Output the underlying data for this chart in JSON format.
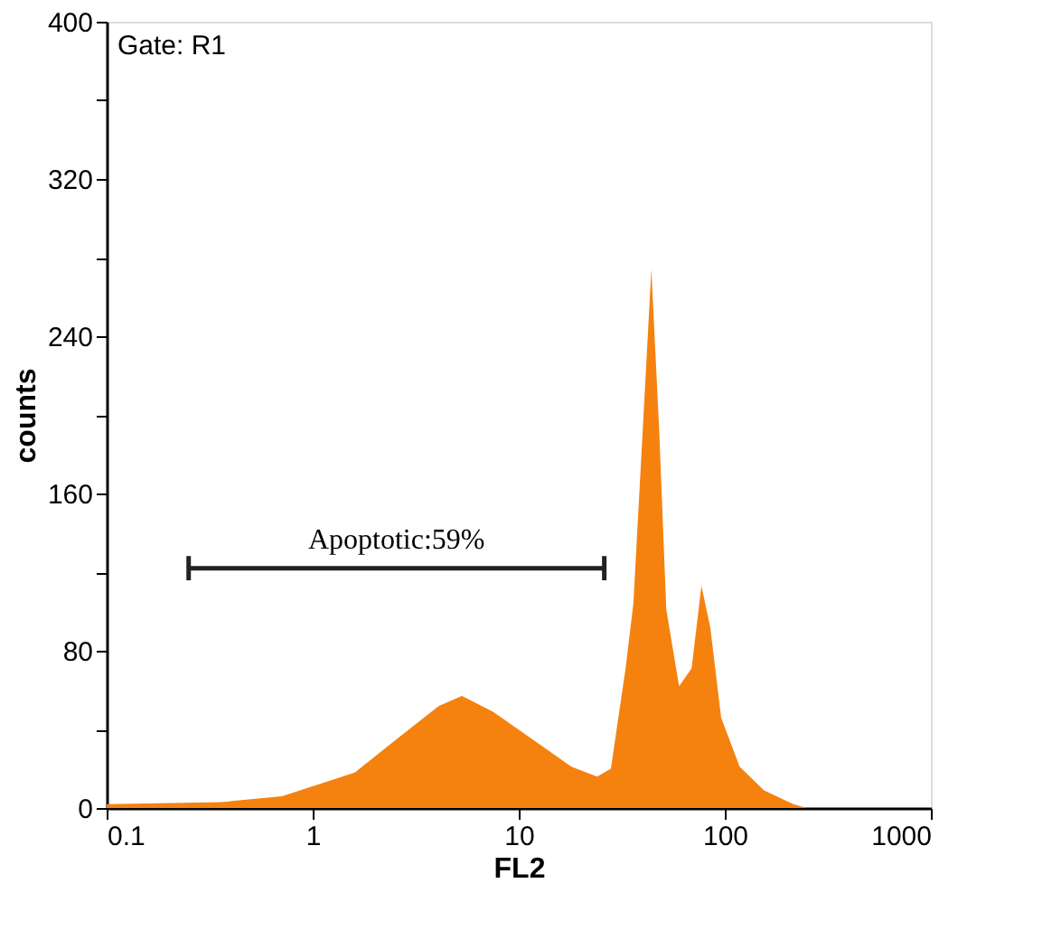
{
  "chart_data": {
    "type": "area",
    "xlabel": "FL2",
    "ylabel": "counts",
    "x": [
      0.1,
      0.36,
      0.71,
      1.6,
      2.7,
      4.1,
      5.3,
      7.5,
      12,
      18,
      24,
      28,
      33,
      36,
      40,
      44,
      48,
      52,
      60,
      69,
      77,
      85,
      96,
      118,
      155,
      215,
      250,
      1000
    ],
    "series": [
      {
        "color": "#f5820f",
        "values": [
          2,
          3,
          6,
          18,
          37,
          52,
          57,
          49,
          34,
          21,
          16,
          20,
          71,
          104,
          193,
          274,
          193,
          101,
          62,
          71,
          113,
          92,
          46,
          21,
          9,
          2,
          0,
          0
        ]
      },
      {
        "type": "line",
        "color": "#222222",
        "x": [
          0.25,
          26
        ],
        "values": [
          122,
          122
        ]
      }
    ],
    "xlim": [
      0.1,
      1000
    ],
    "ylim": [
      0,
      400
    ],
    "log": "x",
    "xticks": [
      0.1,
      1,
      10,
      100,
      1000
    ],
    "yticks": [
      0,
      {
        "value": 40,
        "label": null
      },
      80,
      {
        "value": 120,
        "label": null
      },
      160,
      {
        "value": 200,
        "label": null
      },
      240,
      {
        "value": 280,
        "label": null
      },
      320,
      {
        "value": 360,
        "label": null
      },
      400
    ],
    "grid": false,
    "annotations": [
      "Gate: R1",
      "Apoptotic:59%"
    ]
  }
}
